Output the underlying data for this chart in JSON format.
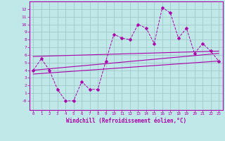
{
  "xlabel": "Windchill (Refroidissement éolien,°C)",
  "xlim": [
    -0.5,
    23.5
  ],
  "ylim": [
    -1.2,
    13.0
  ],
  "yticks": [
    0,
    1,
    2,
    3,
    4,
    5,
    6,
    7,
    8,
    9,
    10,
    11,
    12
  ],
  "ytick_labels": [
    "-0",
    "1",
    "2",
    "3",
    "4",
    "5",
    "6",
    "7",
    "8",
    "9",
    "10",
    "11",
    "12"
  ],
  "xticks": [
    0,
    1,
    2,
    3,
    4,
    5,
    6,
    7,
    8,
    9,
    10,
    11,
    12,
    13,
    14,
    15,
    16,
    17,
    18,
    19,
    20,
    21,
    22,
    23
  ],
  "background_color": "#c0e8e8",
  "grid_color": "#a0c8c8",
  "line_color": "#aa00aa",
  "line1_x": [
    0,
    1,
    2,
    3,
    4,
    5,
    6,
    7,
    8,
    9,
    10,
    11,
    12,
    13,
    14,
    15,
    16,
    17,
    18,
    19,
    20,
    21,
    22,
    23
  ],
  "line1_y": [
    4.0,
    5.5,
    4.0,
    1.5,
    0.0,
    0.0,
    2.5,
    1.5,
    1.5,
    5.2,
    8.7,
    8.2,
    8.0,
    10.0,
    9.5,
    7.5,
    12.2,
    11.5,
    8.2,
    9.5,
    6.2,
    7.5,
    6.5,
    5.2
  ],
  "line2_x": [
    0,
    23
  ],
  "line2_y": [
    5.8,
    6.5
  ],
  "line3_x": [
    0,
    23
  ],
  "line3_y": [
    4.0,
    6.2
  ],
  "line4_x": [
    0,
    23
  ],
  "line4_y": [
    3.5,
    5.2
  ]
}
